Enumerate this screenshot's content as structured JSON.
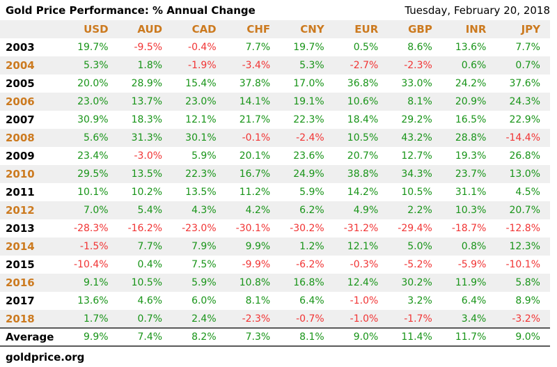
{
  "header": {
    "title": "Gold Price Performance: % Annual Change",
    "date": "Tuesday, February 20, 2018"
  },
  "footer": {
    "source": "goldprice.org"
  },
  "colors": {
    "positive_green": "#189418",
    "negative_red": "#f13434",
    "accent_orange": "#cc7a1f",
    "row_stripe_gray": "#efefef",
    "average_border_gray": "#595959"
  },
  "chart_data": {
    "type": "table",
    "title": "Gold Price Performance: % Annual Change",
    "columns": [
      "USD",
      "AUD",
      "CAD",
      "CHF",
      "CNY",
      "EUR",
      "GBP",
      "INR",
      "JPY"
    ],
    "rows": [
      {
        "label": "2003",
        "values": [
          "19.7%",
          "-9.5%",
          "-0.4%",
          "7.7%",
          "19.7%",
          "0.5%",
          "8.6%",
          "13.6%",
          "7.7%"
        ]
      },
      {
        "label": "2004",
        "values": [
          "5.3%",
          "1.8%",
          "-1.9%",
          "-3.4%",
          "5.3%",
          "-2.7%",
          "-2.3%",
          "0.6%",
          "0.7%"
        ]
      },
      {
        "label": "2005",
        "values": [
          "20.0%",
          "28.9%",
          "15.4%",
          "37.8%",
          "17.0%",
          "36.8%",
          "33.0%",
          "24.2%",
          "37.6%"
        ]
      },
      {
        "label": "2006",
        "values": [
          "23.0%",
          "13.7%",
          "23.0%",
          "14.1%",
          "19.1%",
          "10.6%",
          "8.1%",
          "20.9%",
          "24.3%"
        ]
      },
      {
        "label": "2007",
        "values": [
          "30.9%",
          "18.3%",
          "12.1%",
          "21.7%",
          "22.3%",
          "18.4%",
          "29.2%",
          "16.5%",
          "22.9%"
        ]
      },
      {
        "label": "2008",
        "values": [
          "5.6%",
          "31.3%",
          "30.1%",
          "-0.1%",
          "-2.4%",
          "10.5%",
          "43.2%",
          "28.8%",
          "-14.4%"
        ]
      },
      {
        "label": "2009",
        "values": [
          "23.4%",
          "-3.0%",
          "5.9%",
          "20.1%",
          "23.6%",
          "20.7%",
          "12.7%",
          "19.3%",
          "26.8%"
        ]
      },
      {
        "label": "2010",
        "values": [
          "29.5%",
          "13.5%",
          "22.3%",
          "16.7%",
          "24.9%",
          "38.8%",
          "34.3%",
          "23.7%",
          "13.0%"
        ]
      },
      {
        "label": "2011",
        "values": [
          "10.1%",
          "10.2%",
          "13.5%",
          "11.2%",
          "5.9%",
          "14.2%",
          "10.5%",
          "31.1%",
          "4.5%"
        ]
      },
      {
        "label": "2012",
        "values": [
          "7.0%",
          "5.4%",
          "4.3%",
          "4.2%",
          "6.2%",
          "4.9%",
          "2.2%",
          "10.3%",
          "20.7%"
        ]
      },
      {
        "label": "2013",
        "values": [
          "-28.3%",
          "-16.2%",
          "-23.0%",
          "-30.1%",
          "-30.2%",
          "-31.2%",
          "-29.4%",
          "-18.7%",
          "-12.8%"
        ]
      },
      {
        "label": "2014",
        "values": [
          "-1.5%",
          "7.7%",
          "7.9%",
          "9.9%",
          "1.2%",
          "12.1%",
          "5.0%",
          "0.8%",
          "12.3%"
        ]
      },
      {
        "label": "2015",
        "values": [
          "-10.4%",
          "0.4%",
          "7.5%",
          "-9.9%",
          "-6.2%",
          "-0.3%",
          "-5.2%",
          "-5.9%",
          "-10.1%"
        ]
      },
      {
        "label": "2016",
        "values": [
          "9.1%",
          "10.5%",
          "5.9%",
          "10.8%",
          "16.8%",
          "12.4%",
          "30.2%",
          "11.9%",
          "5.8%"
        ]
      },
      {
        "label": "2017",
        "values": [
          "13.6%",
          "4.6%",
          "6.0%",
          "8.1%",
          "6.4%",
          "-1.0%",
          "3.2%",
          "6.4%",
          "8.9%"
        ]
      },
      {
        "label": "2018",
        "values": [
          "1.7%",
          "0.7%",
          "2.4%",
          "-2.3%",
          "-0.7%",
          "-1.0%",
          "-1.7%",
          "3.4%",
          "-3.2%"
        ]
      },
      {
        "label": "Average",
        "values": [
          "9.9%",
          "7.4%",
          "8.2%",
          "7.3%",
          "8.1%",
          "9.0%",
          "11.4%",
          "11.7%",
          "9.0%"
        ]
      }
    ]
  }
}
